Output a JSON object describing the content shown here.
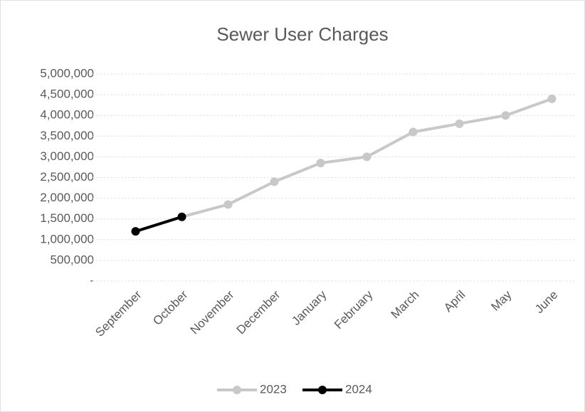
{
  "chart_data": {
    "type": "line",
    "title": "Sewer User Charges",
    "categories": [
      "September",
      "October",
      "November",
      "December",
      "January",
      "February",
      "March",
      "April",
      "May",
      "June"
    ],
    "series": [
      {
        "name": "2023",
        "color": "#c8c8c8",
        "values": [
          null,
          1550000,
          1850000,
          2400000,
          2850000,
          3000000,
          3600000,
          3800000,
          4000000,
          4400000
        ]
      },
      {
        "name": "2024",
        "color": "#000000",
        "values": [
          1200000,
          1550000,
          null,
          null,
          null,
          null,
          null,
          null,
          null,
          null
        ]
      }
    ],
    "ylim": [
      0,
      5000000
    ],
    "yticks": [
      {
        "value": 0,
        "label": "-"
      },
      {
        "value": 500000,
        "label": "500,000"
      },
      {
        "value": 1000000,
        "label": "1,000,000"
      },
      {
        "value": 1500000,
        "label": "1,500,000"
      },
      {
        "value": 2000000,
        "label": "2,000,000"
      },
      {
        "value": 2500000,
        "label": "2,500,000"
      },
      {
        "value": 3000000,
        "label": "3,000,000"
      },
      {
        "value": 3500000,
        "label": "3,500,000"
      },
      {
        "value": 4000000,
        "label": "4,000,000"
      },
      {
        "value": 4500000,
        "label": "4,500,000"
      },
      {
        "value": 5000000,
        "label": "5,000,000"
      }
    ],
    "grid": true,
    "legend": "bottom"
  }
}
